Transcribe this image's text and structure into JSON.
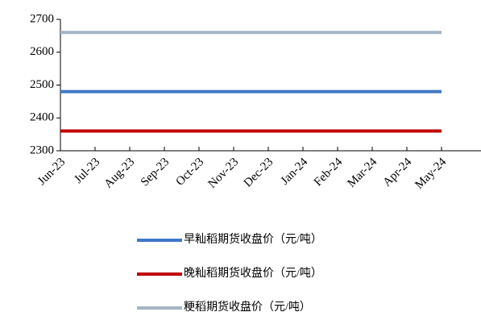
{
  "chart_data": {
    "type": "line",
    "categories": [
      "Jun-23",
      "Jul-23",
      "Aug-23",
      "Sep-23",
      "Oct-23",
      "Nov-23",
      "Dec-23",
      "Jan-24",
      "Feb-24",
      "Mar-24",
      "Apr-24",
      "May-24"
    ],
    "series": [
      {
        "name": "早籼稻期货收盘价（元/吨）",
        "color": "#4078c8",
        "values": [
          2480,
          2480,
          2480,
          2480,
          2480,
          2480,
          2480,
          2480,
          2480,
          2480,
          2480,
          2480
        ]
      },
      {
        "name": "晚籼稻期货收盘价（元/吨）",
        "color": "#c00000",
        "values": [
          2360,
          2360,
          2360,
          2360,
          2360,
          2360,
          2360,
          2360,
          2360,
          2360,
          2360,
          2360
        ]
      },
      {
        "name": "粳稻期货收盘价（元/吨）",
        "color": "#a5b5c6",
        "values": [
          2660,
          2660,
          2660,
          2660,
          2660,
          2660,
          2660,
          2660,
          2660,
          2660,
          2660,
          2660
        ]
      }
    ],
    "ylim": [
      2300,
      2700
    ],
    "yticks": [
      2300,
      2400,
      2500,
      2600,
      2700
    ]
  }
}
